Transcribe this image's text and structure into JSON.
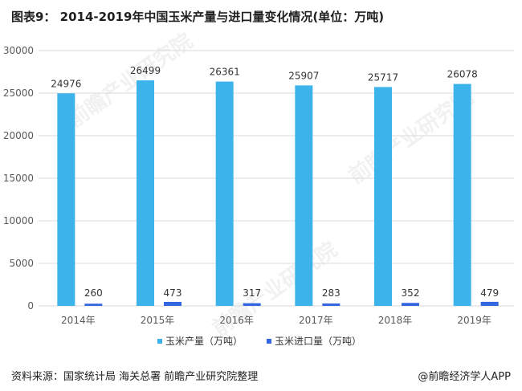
{
  "title": "图表9： 2014-2019年中国玉米产量与进口量变化情况(单位：万吨)",
  "source": "资料来源：国家统计局 海关总署 前瞻产业研究院整理",
  "brand": "@前瞻经济学人APP",
  "watermark": "前瞻产业研究院",
  "colors": {
    "production": "#3DB3EB",
    "imports": "#3366E0",
    "grid": "#D9D9D9",
    "axis_text": "#595959"
  },
  "chart_data": {
    "type": "bar",
    "title": "图表9： 2014-2019年中国玉米产量与进口量变化情况(单位：万吨)",
    "categories": [
      "2014年",
      "2015年",
      "2016年",
      "2017年",
      "2018年",
      "2019年"
    ],
    "series": [
      {
        "name": "玉米产量（万吨）",
        "values": [
          24976,
          26499,
          26361,
          25907,
          25717,
          26078
        ]
      },
      {
        "name": "玉米进口量（万吨）",
        "values": [
          260,
          473,
          317,
          283,
          352,
          479
        ]
      }
    ],
    "ylim": [
      0,
      30000
    ],
    "yticks": [
      0,
      5000,
      10000,
      15000,
      20000,
      25000,
      30000
    ],
    "grid": true,
    "legend_position": "bottom",
    "data_labels": true
  }
}
